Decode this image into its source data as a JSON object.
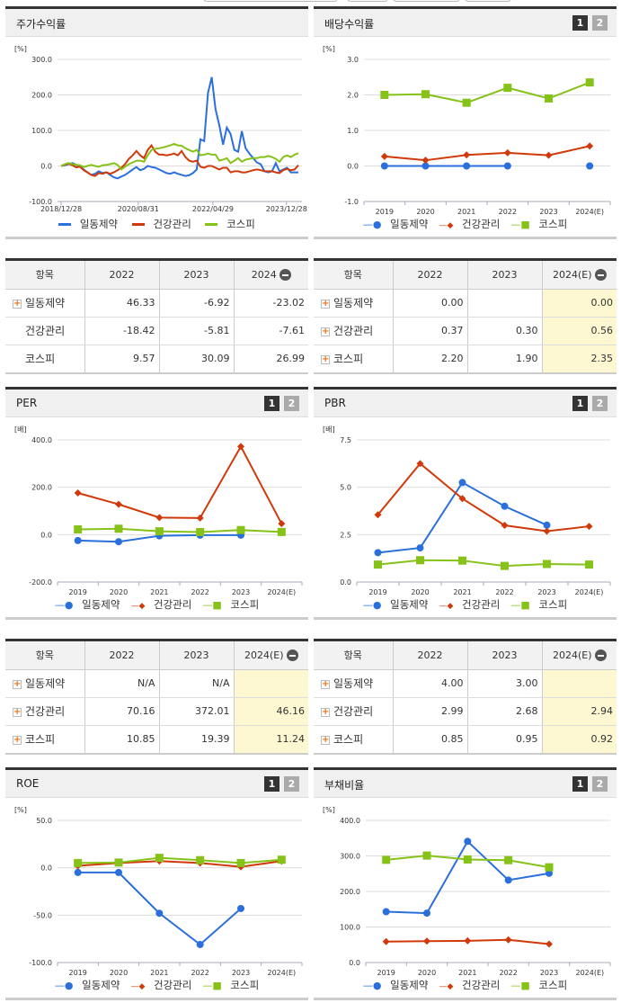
{
  "legend_names": [
    "일동제약",
    "건강관리",
    "코스피"
  ],
  "colors": {
    "series1": "#2a6fdb",
    "series2": "#d03a0a",
    "series3": "#86c218"
  },
  "panels": {
    "stock": {
      "title": "주가수익률",
      "unit": "[%]"
    },
    "dividend": {
      "title": "배당수익률",
      "unit": "[%]",
      "page1": "1",
      "page2": "2"
    },
    "per": {
      "title": "PER",
      "unit": "[배]",
      "page1": "1",
      "page2": "2"
    },
    "pbr": {
      "title": "PBR",
      "unit": "[배]",
      "page1": "1",
      "page2": "2"
    },
    "roe": {
      "title": "ROE",
      "unit": "[%]",
      "page1": "1",
      "page2": "2"
    },
    "debt": {
      "title": "부채비율",
      "unit": "[%]",
      "page1": "1",
      "page2": "2"
    }
  },
  "tables": {
    "stock": {
      "headers": [
        "항목",
        "2022",
        "2023",
        "2024"
      ],
      "rows": [
        {
          "name": "일동제약",
          "expandable": true,
          "values": [
            "46.33",
            "-6.92",
            "-23.02"
          ]
        },
        {
          "name": "건강관리",
          "expandable": false,
          "values": [
            "-18.42",
            "-5.81",
            "-7.61"
          ]
        },
        {
          "name": "코스피",
          "expandable": false,
          "values": [
            "9.57",
            "30.09",
            "26.99"
          ]
        }
      ]
    },
    "dividend": {
      "headers": [
        "항목",
        "2022",
        "2023",
        "2024(E)"
      ],
      "rows": [
        {
          "name": "일동제약",
          "expandable": true,
          "values": [
            "0.00",
            "",
            "0.00"
          ]
        },
        {
          "name": "건강관리",
          "expandable": true,
          "values": [
            "0.37",
            "0.30",
            "0.56"
          ]
        },
        {
          "name": "코스피",
          "expandable": true,
          "values": [
            "2.20",
            "1.90",
            "2.35"
          ]
        }
      ]
    },
    "per": {
      "headers": [
        "항목",
        "2022",
        "2023",
        "2024(E)"
      ],
      "rows": [
        {
          "name": "일동제약",
          "expandable": true,
          "values": [
            "N/A",
            "N/A",
            ""
          ]
        },
        {
          "name": "건강관리",
          "expandable": true,
          "values": [
            "70.16",
            "372.01",
            "46.16"
          ]
        },
        {
          "name": "코스피",
          "expandable": true,
          "values": [
            "10.85",
            "19.39",
            "11.24"
          ]
        }
      ]
    },
    "pbr": {
      "headers": [
        "항목",
        "2022",
        "2023",
        "2024(E)"
      ],
      "rows": [
        {
          "name": "일동제약",
          "expandable": true,
          "values": [
            "4.00",
            "3.00",
            ""
          ]
        },
        {
          "name": "건강관리",
          "expandable": true,
          "values": [
            "2.99",
            "2.68",
            "2.94"
          ]
        },
        {
          "name": "코스피",
          "expandable": true,
          "values": [
            "0.85",
            "0.95",
            "0.92"
          ]
        }
      ]
    }
  },
  "chart_data": [
    {
      "type": "line",
      "title": "주가수익률",
      "ylabel": "[%]",
      "ylim": [
        -100,
        300
      ],
      "yticks": [
        "300.0",
        "200.0",
        "100.0",
        "0.0",
        "-100.0"
      ],
      "xticks": [
        "2018/12/28",
        "2020/08/31",
        "2022/04/29",
        "2023/12/28"
      ],
      "grid": true,
      "legend_position": "bottom",
      "series": [
        {
          "name": "일동제약",
          "values": [
            0,
            2,
            5,
            8,
            3,
            -2,
            -10,
            -18,
            -25,
            -22,
            -15,
            -20,
            -18,
            -25,
            -32,
            -35,
            -30,
            -25,
            -18,
            -10,
            -3,
            -12,
            -8,
            0,
            -3,
            -5,
            -10,
            -15,
            -20,
            -22,
            -18,
            -22,
            -25,
            -28,
            -26,
            -20,
            -10,
            75,
            70,
            205,
            250,
            160,
            115,
            60,
            108,
            90,
            45,
            40,
            98,
            50,
            35,
            22,
            10,
            5,
            -15,
            -18,
            -15,
            8,
            -15,
            -10,
            -5,
            -18,
            -18,
            -18
          ]
        },
        {
          "name": "건강관리",
          "values": [
            0,
            4,
            6,
            2,
            -4,
            -2,
            -12,
            -18,
            -25,
            -28,
            -20,
            -22,
            -18,
            -22,
            -18,
            -12,
            -5,
            5,
            20,
            30,
            42,
            30,
            22,
            45,
            58,
            40,
            32,
            32,
            30,
            32,
            35,
            30,
            42,
            25,
            15,
            12,
            15,
            -2,
            -5,
            0,
            0,
            -5,
            -10,
            -5,
            -5,
            -18,
            -15,
            -15,
            -18,
            -18,
            -15,
            -12,
            -10,
            -12,
            -15,
            -15,
            -15,
            -18,
            -20,
            -12,
            -8,
            -12,
            -10,
            2
          ]
        },
        {
          "name": "코스피",
          "values": [
            0,
            5,
            8,
            5,
            3,
            2,
            -3,
            0,
            3,
            0,
            -2,
            2,
            3,
            5,
            8,
            3,
            -10,
            -2,
            5,
            10,
            15,
            15,
            12,
            30,
            45,
            48,
            50,
            52,
            55,
            58,
            62,
            58,
            57,
            50,
            45,
            40,
            45,
            30,
            32,
            35,
            32,
            32,
            15,
            18,
            22,
            8,
            15,
            22,
            12,
            18,
            20,
            22,
            22,
            25,
            25,
            28,
            25,
            20,
            12,
            25,
            30,
            25,
            32,
            36
          ]
        }
      ]
    },
    {
      "type": "line",
      "title": "배당수익률",
      "ylabel": "[%]",
      "ylim": [
        -1,
        3
      ],
      "yticks": [
        "3.0",
        "2.0",
        "1.0",
        "0.0",
        "-1.0"
      ],
      "categories": [
        "2019",
        "2020",
        "2021",
        "2022",
        "2023",
        "2024(E)"
      ],
      "grid": true,
      "legend_position": "bottom",
      "series": [
        {
          "name": "일동제약",
          "values": [
            0.0,
            0.0,
            0.0,
            0.0,
            null,
            0.0
          ]
        },
        {
          "name": "건강관리",
          "values": [
            0.27,
            0.16,
            0.31,
            0.37,
            0.3,
            0.56
          ]
        },
        {
          "name": "코스피",
          "values": [
            2.0,
            2.02,
            1.78,
            2.2,
            1.9,
            2.35
          ]
        }
      ]
    },
    {
      "type": "line",
      "title": "PER",
      "ylabel": "[배]",
      "ylim": [
        -200,
        400
      ],
      "yticks": [
        "400.0",
        "200.0",
        "0.0",
        "-200.0"
      ],
      "categories": [
        "2019",
        "2020",
        "2021",
        "2022",
        "2023",
        "2024(E)"
      ],
      "grid": true,
      "legend_position": "bottom",
      "series": [
        {
          "name": "일동제약",
          "values": [
            -25,
            -30,
            -5,
            -2,
            -2,
            null
          ]
        },
        {
          "name": "건강관리",
          "values": [
            176,
            128,
            72,
            70.16,
            372.01,
            46.16
          ]
        },
        {
          "name": "코스피",
          "values": [
            22,
            25,
            14,
            10.85,
            19.39,
            11.24
          ]
        }
      ]
    },
    {
      "type": "line",
      "title": "PBR",
      "ylabel": "[배]",
      "ylim": [
        0,
        7.5
      ],
      "yticks": [
        "7.5",
        "5.0",
        "2.5",
        "0.0"
      ],
      "categories": [
        "2019",
        "2020",
        "2021",
        "2022",
        "2023",
        "2024(E)"
      ],
      "grid": true,
      "legend_position": "bottom",
      "series": [
        {
          "name": "일동제약",
          "values": [
            1.55,
            1.8,
            5.25,
            4.0,
            3.0,
            null
          ]
        },
        {
          "name": "건강관리",
          "values": [
            3.55,
            6.25,
            4.4,
            2.99,
            2.68,
            2.94
          ]
        },
        {
          "name": "코스피",
          "values": [
            0.92,
            1.15,
            1.13,
            0.85,
            0.95,
            0.92
          ]
        }
      ]
    },
    {
      "type": "line",
      "title": "ROE",
      "ylabel": "[%]",
      "ylim": [
        -100,
        50
      ],
      "yticks": [
        "50.0",
        "0.0",
        "-50.0",
        "-100.0"
      ],
      "categories": [
        "2019",
        "2020",
        "2021",
        "2022",
        "2023",
        "2024(E)"
      ],
      "grid": true,
      "legend_position": "bottom",
      "series": [
        {
          "name": "일동제약",
          "values": [
            -5,
            -5,
            -48,
            -81,
            -43,
            null
          ]
        },
        {
          "name": "건강관리",
          "values": [
            2,
            5,
            7,
            5,
            1,
            7
          ]
        },
        {
          "name": "코스피",
          "values": [
            5,
            5.5,
            10.5,
            8,
            5,
            8.5
          ]
        }
      ]
    },
    {
      "type": "line",
      "title": "부채비율",
      "ylabel": "[%]",
      "ylim": [
        0,
        400
      ],
      "yticks": [
        "400.0",
        "300.0",
        "200.0",
        "100.0",
        "0.0"
      ],
      "categories": [
        "2019",
        "2020",
        "2021",
        "2022",
        "2023",
        "2024(E)"
      ],
      "grid": true,
      "legend_position": "bottom",
      "series": [
        {
          "name": "일동제약",
          "values": [
            143,
            139,
            341,
            232,
            251,
            null
          ]
        },
        {
          "name": "건강관리",
          "values": [
            59,
            60,
            61,
            64,
            52,
            null
          ]
        },
        {
          "name": "코스피",
          "values": [
            289,
            301,
            290,
            288,
            268,
            null
          ]
        }
      ]
    }
  ]
}
